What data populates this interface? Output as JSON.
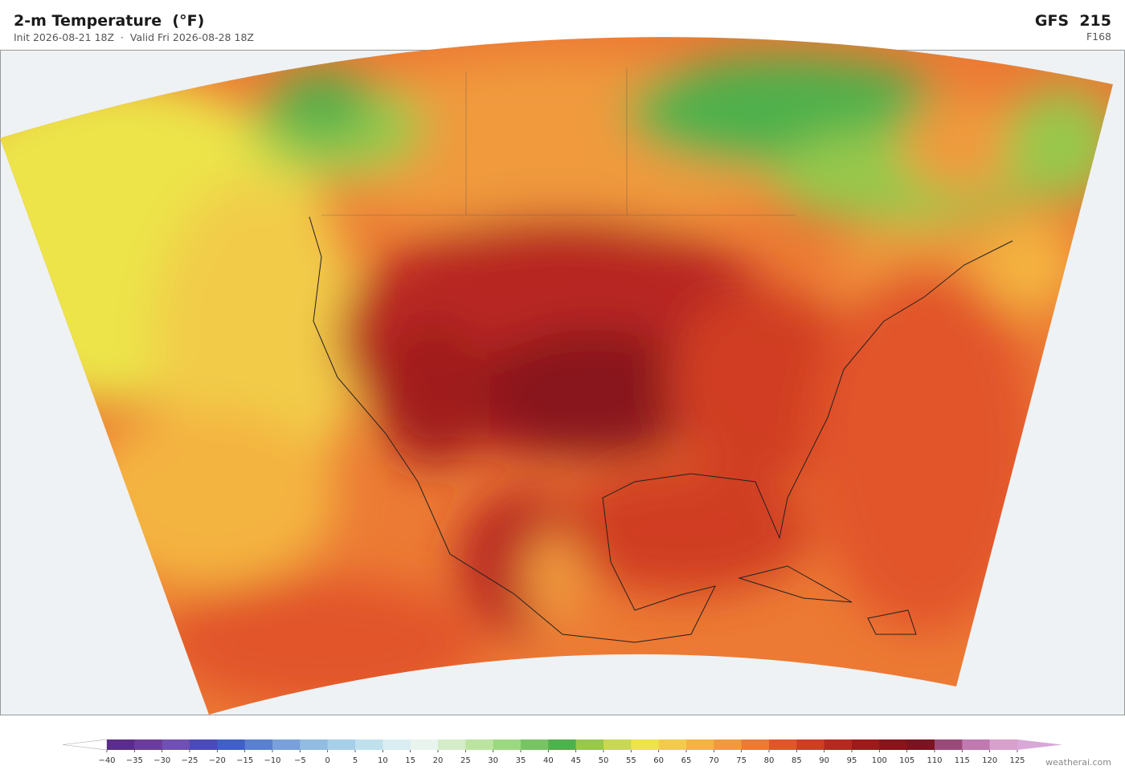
{
  "header": {
    "title": "2-m Temperature  (°F)",
    "subtitle": "Init 2026-08-21 18Z  ·  Valid Fri 2026-08-28 18Z",
    "model": "GFS  215",
    "forecast_hour": "F168"
  },
  "colorbar": {
    "ticks": [
      {
        "value": -40,
        "label": "−40"
      },
      {
        "value": -35,
        "label": "−35"
      },
      {
        "value": -30,
        "label": "−30"
      },
      {
        "value": -25,
        "label": "−25"
      },
      {
        "value": -20,
        "label": "−20"
      },
      {
        "value": -15,
        "label": "−15"
      },
      {
        "value": -10,
        "label": "−10"
      },
      {
        "value": -5,
        "label": "−5"
      },
      0,
      5,
      10,
      15,
      20,
      25,
      30,
      35,
      40,
      45,
      50,
      55,
      60,
      65,
      70,
      75,
      80,
      85,
      90,
      95,
      100,
      105,
      110,
      115,
      120,
      125
    ],
    "colors": [
      "#5a2d8a",
      "#6a3d9a",
      "#7050b0",
      "#4a4ab8",
      "#4060c8",
      "#5a80d0",
      "#7aa0dc",
      "#92bce2",
      "#a8cfe8",
      "#c0e0ee",
      "#d8eef2",
      "#e8f4ee",
      "#d4ecc8",
      "#bce4a0",
      "#9cd880",
      "#78c464",
      "#50b04c",
      "#98c84c",
      "#c8d850",
      "#ece44a",
      "#f2cc48",
      "#f4b440",
      "#f09a3c",
      "#ec7a34",
      "#e2552a",
      "#d03c24",
      "#b82820",
      "#a01a1c",
      "#88141c",
      "#7a1420",
      "#9a4a7a",
      "#c07ab0",
      "#d8a0cc"
    ],
    "extend_low_color": "#ffffff",
    "extend_high_color": "#d8a8d8"
  },
  "footer": {
    "credit": "weatherai.com"
  }
}
